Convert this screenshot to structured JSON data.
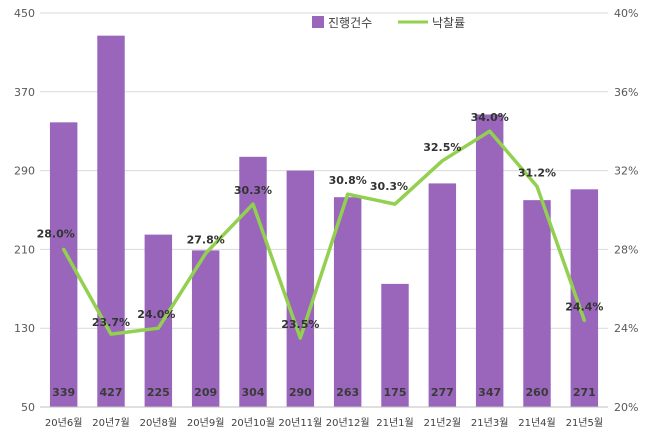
{
  "chart_data": {
    "type": "bar",
    "title": "",
    "categories": [
      "20년6월",
      "20년7월",
      "20년8월",
      "20년9월",
      "20년10월",
      "20년11월",
      "20년12월",
      "21년1월",
      "21년2월",
      "21년3월",
      "21년4월",
      "21년5월"
    ],
    "series": [
      {
        "name": "진행건수",
        "type": "bar",
        "axis": "left",
        "color": "#9966bb",
        "values": [
          339,
          427,
          225,
          209,
          304,
          290,
          263,
          175,
          277,
          347,
          260,
          271
        ]
      },
      {
        "name": "낙찰률",
        "type": "line",
        "axis": "right",
        "color": "#92d050",
        "values": [
          28.0,
          23.7,
          24.0,
          27.8,
          30.3,
          23.5,
          30.8,
          30.3,
          32.5,
          34.0,
          31.2,
          24.4
        ],
        "labels": [
          "28.0%",
          "23.7%",
          "24.0%",
          "27.8%",
          "30.3%",
          "23.5%",
          "30.8%",
          "30.3%",
          "32.5%",
          "34.0%",
          "31.2%",
          "24.4%"
        ]
      }
    ],
    "y_left": {
      "min": 50,
      "max": 450,
      "ticks": [
        50,
        130,
        210,
        290,
        370,
        450
      ]
    },
    "y_right": {
      "min": 20,
      "max": 40,
      "ticks": [
        "20%",
        "24%",
        "28%",
        "32%",
        "36%",
        "40%"
      ]
    },
    "legend_position": "top-center",
    "grid": "horizontal"
  }
}
